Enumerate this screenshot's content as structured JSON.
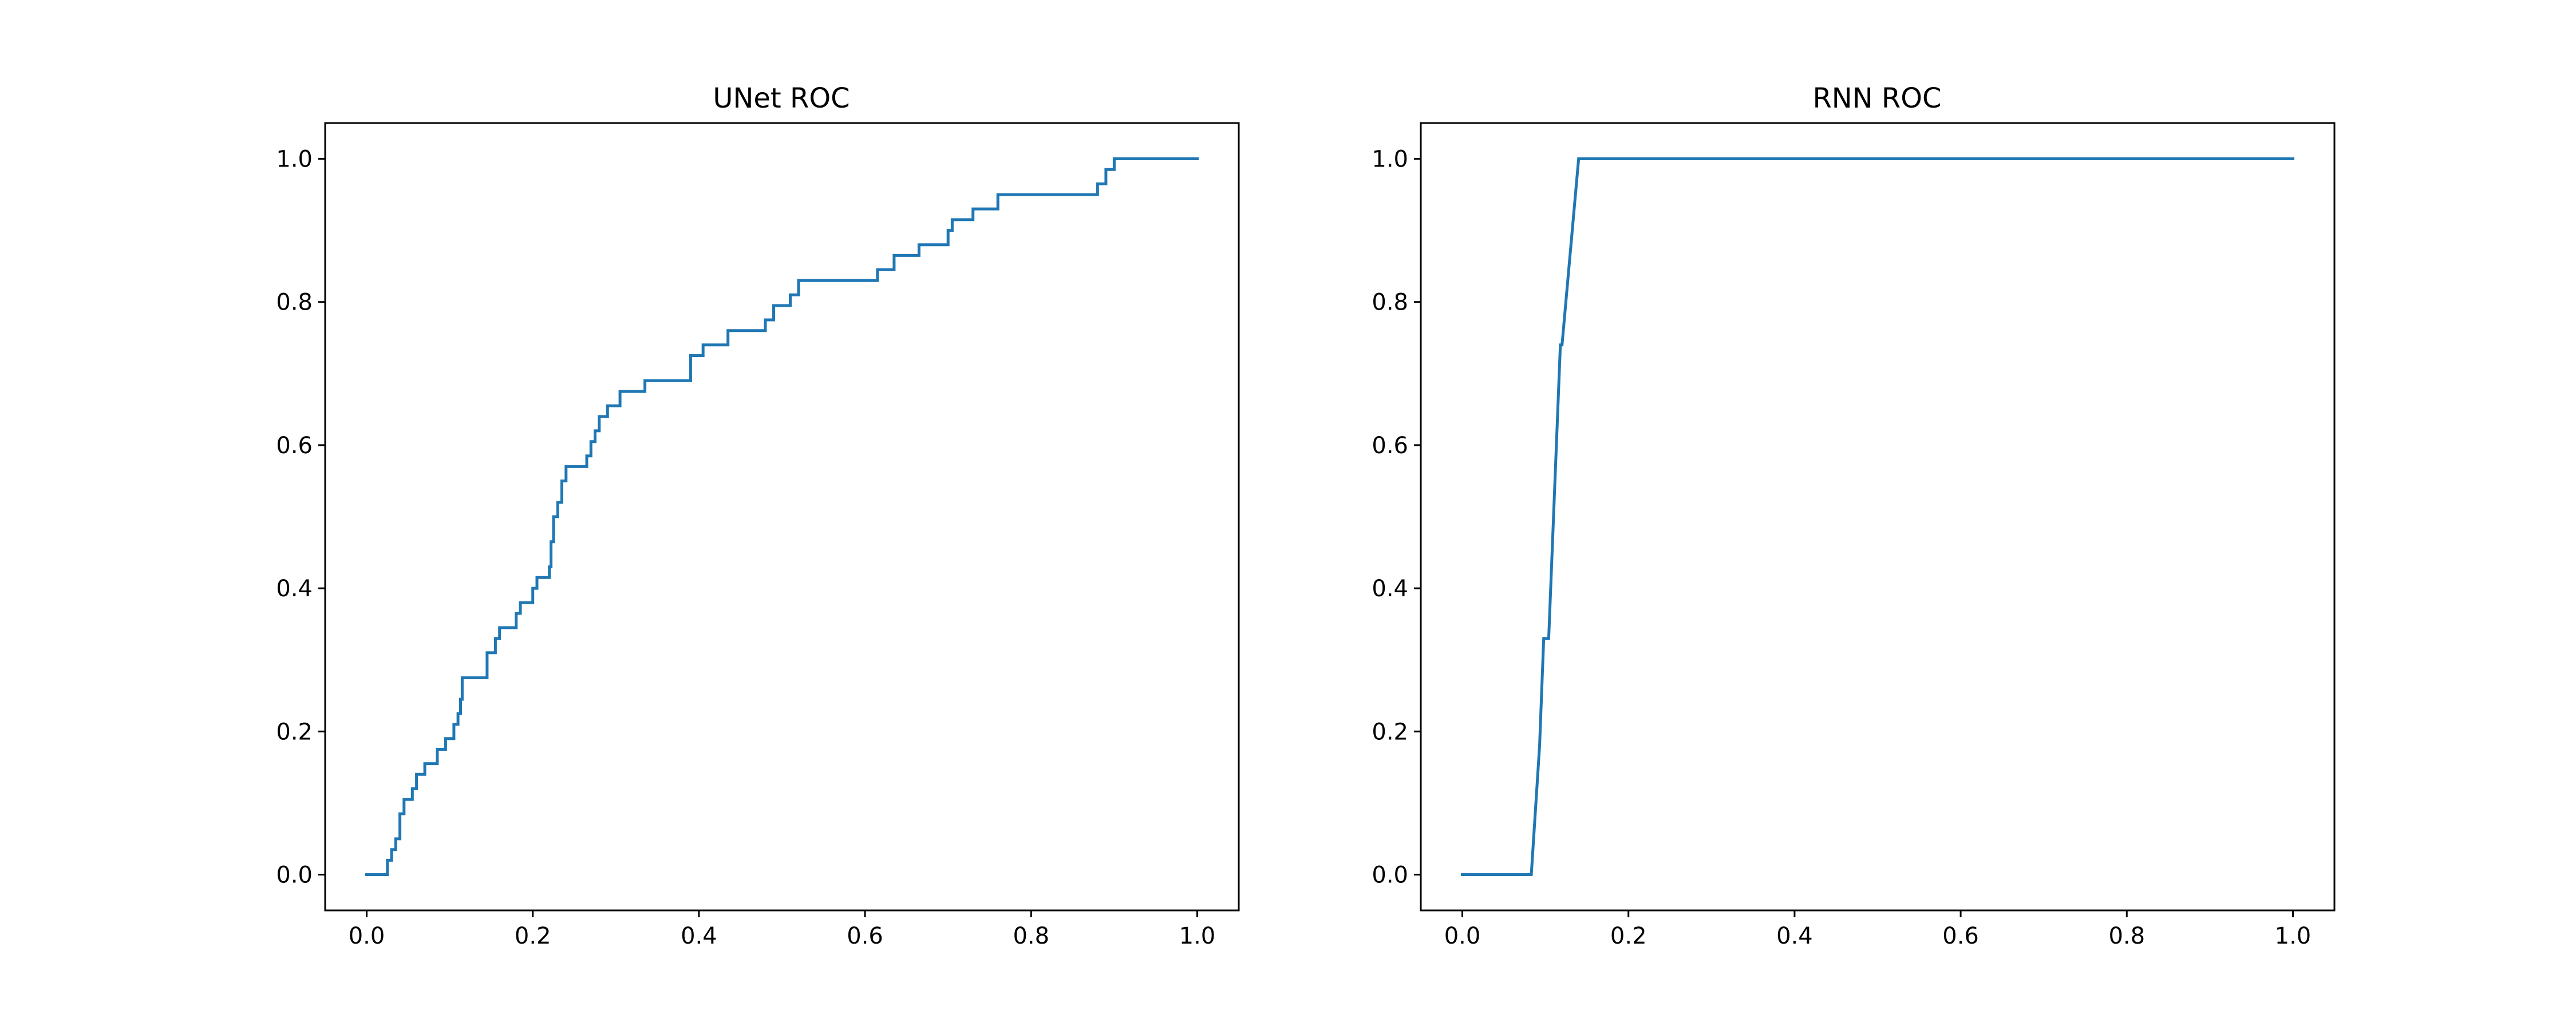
{
  "chart_data": [
    {
      "type": "line",
      "title": "UNet ROC",
      "xlabel": "",
      "ylabel": "",
      "xlim": [
        -0.05,
        1.05
      ],
      "ylim": [
        -0.05,
        1.05
      ],
      "grid": false,
      "xticks": [
        "0.0",
        "0.2",
        "0.4",
        "0.6",
        "0.8",
        "1.0"
      ],
      "yticks": [
        "0.0",
        "0.2",
        "0.4",
        "0.6",
        "0.8",
        "1.0"
      ],
      "color": "#1f77b4",
      "series": [
        {
          "x": [
            0.0,
            0.025,
            0.025,
            0.03,
            0.03,
            0.035,
            0.035,
            0.04,
            0.04,
            0.045,
            0.045,
            0.055,
            0.055,
            0.06,
            0.06,
            0.07,
            0.07,
            0.085,
            0.085,
            0.095,
            0.095,
            0.105,
            0.105,
            0.11,
            0.11,
            0.113,
            0.113,
            0.115,
            0.115,
            0.145,
            0.145,
            0.155,
            0.155,
            0.16,
            0.16,
            0.18,
            0.18,
            0.185,
            0.185,
            0.2,
            0.2,
            0.205,
            0.205,
            0.22,
            0.22,
            0.222,
            0.222,
            0.225,
            0.225,
            0.23,
            0.23,
            0.235,
            0.235,
            0.24,
            0.24,
            0.265,
            0.265,
            0.27,
            0.27,
            0.275,
            0.275,
            0.28,
            0.28,
            0.29,
            0.29,
            0.305,
            0.305,
            0.335,
            0.335,
            0.39,
            0.39,
            0.405,
            0.405,
            0.435,
            0.435,
            0.48,
            0.48,
            0.49,
            0.49,
            0.51,
            0.51,
            0.52,
            0.52,
            0.615,
            0.615,
            0.635,
            0.635,
            0.665,
            0.665,
            0.7,
            0.7,
            0.705,
            0.705,
            0.73,
            0.73,
            0.76,
            0.76,
            0.88,
            0.88,
            0.89,
            0.89,
            0.9,
            0.9,
            1.0
          ],
          "y": [
            0.0,
            0.0,
            0.02,
            0.02,
            0.035,
            0.035,
            0.05,
            0.05,
            0.085,
            0.085,
            0.105,
            0.105,
            0.12,
            0.12,
            0.14,
            0.14,
            0.155,
            0.155,
            0.175,
            0.175,
            0.19,
            0.19,
            0.21,
            0.21,
            0.225,
            0.225,
            0.245,
            0.245,
            0.275,
            0.275,
            0.31,
            0.31,
            0.33,
            0.33,
            0.345,
            0.345,
            0.365,
            0.365,
            0.38,
            0.38,
            0.4,
            0.4,
            0.415,
            0.415,
            0.43,
            0.43,
            0.465,
            0.465,
            0.5,
            0.5,
            0.52,
            0.52,
            0.55,
            0.55,
            0.57,
            0.57,
            0.585,
            0.585,
            0.605,
            0.605,
            0.62,
            0.62,
            0.64,
            0.64,
            0.655,
            0.655,
            0.675,
            0.675,
            0.69,
            0.69,
            0.725,
            0.725,
            0.74,
            0.74,
            0.76,
            0.76,
            0.775,
            0.775,
            0.795,
            0.795,
            0.81,
            0.81,
            0.83,
            0.83,
            0.845,
            0.845,
            0.865,
            0.865,
            0.88,
            0.88,
            0.9,
            0.9,
            0.915,
            0.915,
            0.93,
            0.93,
            0.95,
            0.95,
            0.965,
            0.965,
            0.985,
            0.985,
            1.0,
            1.0
          ]
        }
      ]
    },
    {
      "type": "line",
      "title": "RNN ROC",
      "xlabel": "",
      "ylabel": "",
      "xlim": [
        -0.05,
        1.05
      ],
      "ylim": [
        -0.05,
        1.05
      ],
      "grid": false,
      "xticks": [
        "0.0",
        "0.2",
        "0.4",
        "0.6",
        "0.8",
        "1.0"
      ],
      "yticks": [
        "0.0",
        "0.2",
        "0.4",
        "0.6",
        "0.8",
        "1.0"
      ],
      "color": "#1f77b4",
      "series": [
        {
          "x": [
            0.0,
            0.083,
            0.093,
            0.098,
            0.1,
            0.104,
            0.118,
            0.12,
            0.14,
            1.0
          ],
          "y": [
            0.0,
            0.0,
            0.18,
            0.33,
            0.33,
            0.33,
            0.74,
            0.74,
            1.0,
            1.0
          ]
        }
      ]
    }
  ]
}
